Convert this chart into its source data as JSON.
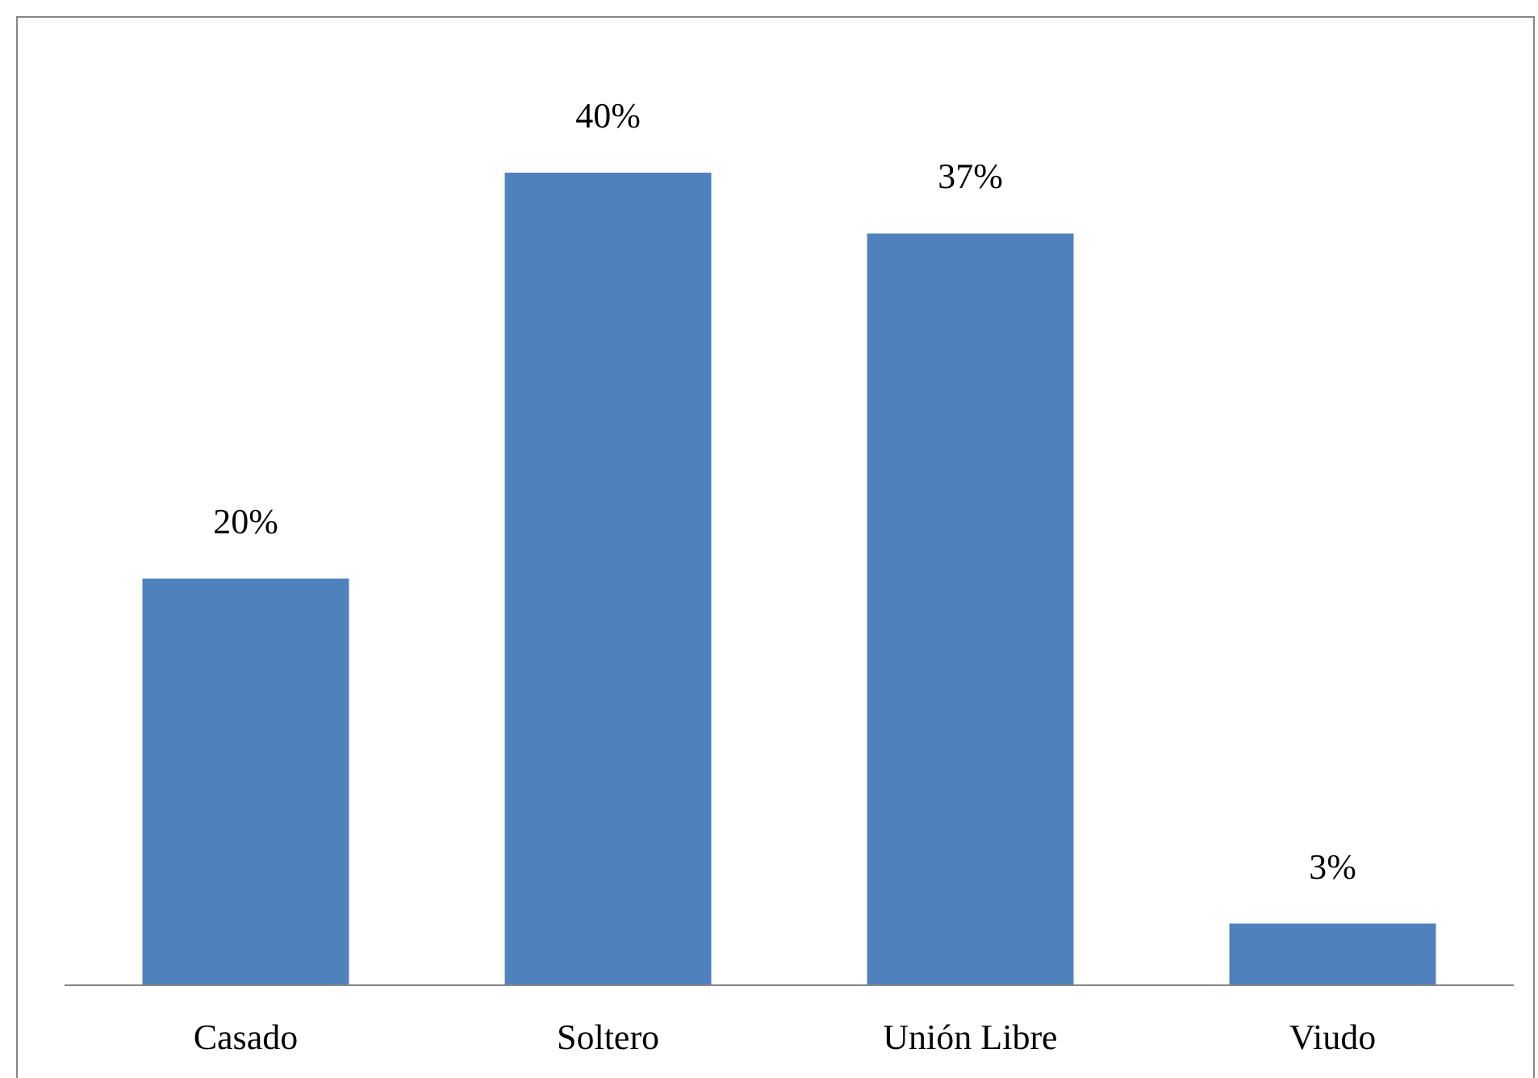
{
  "chart_data": {
    "type": "bar",
    "categories": [
      "Casado",
      "Soltero",
      "Unión Libre",
      "Viudo"
    ],
    "values": [
      20,
      40,
      37,
      3
    ],
    "color": "#4f81bd",
    "value_labels": [
      "20%",
      "40%",
      "37%",
      "3%"
    ]
  }
}
